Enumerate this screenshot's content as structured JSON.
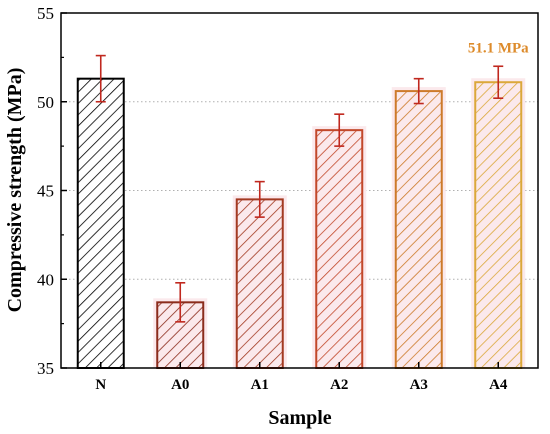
{
  "chart_data": {
    "type": "bar",
    "xlabel": "Sample",
    "ylabel": "Compressive strength (MPa)",
    "ylim": [
      35,
      55
    ],
    "yticks": [
      35,
      40,
      45,
      50,
      55
    ],
    "grid": "horizontal dotted at 40, 45, 50",
    "categories": [
      "N",
      "A0",
      "A1",
      "A2",
      "A3",
      "A4"
    ],
    "values": [
      51.3,
      38.7,
      44.5,
      48.4,
      50.6,
      51.1
    ],
    "errors": [
      1.3,
      1.1,
      1.0,
      0.9,
      0.7,
      0.9
    ],
    "colors": [
      "#000000",
      "#8b2c1c",
      "#a33a22",
      "#c2482a",
      "#cd7a2a",
      "#dba83a"
    ],
    "bar_fill": "#fbe9ec",
    "error_color": "#c0281e",
    "annotation": {
      "text": "51.1 MPa",
      "category": "A4",
      "color": "#dd8b2b"
    }
  }
}
